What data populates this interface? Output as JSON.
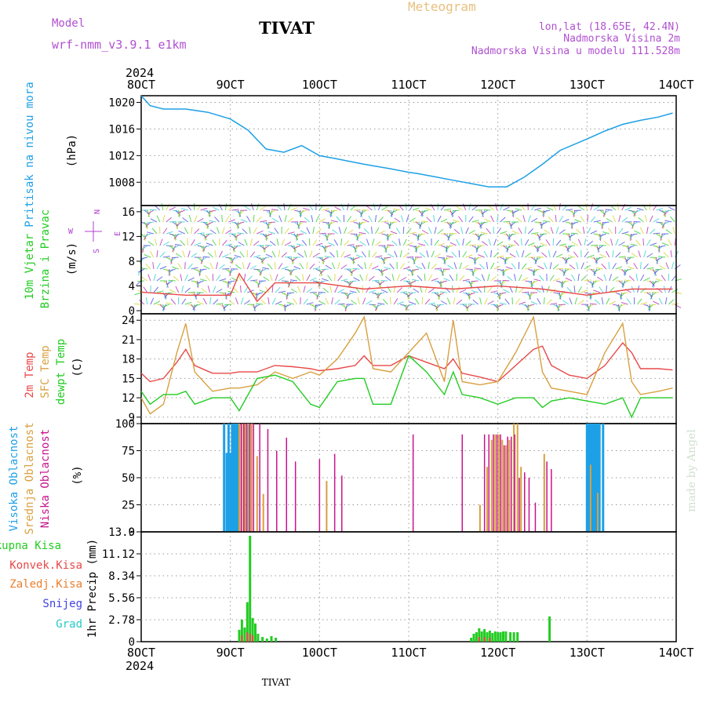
{
  "header": {
    "model_label": "Model",
    "model_name": "wrf-nmm_v3.9.1 e1km",
    "station": "TIVAT",
    "product": "Meteogram",
    "lonlat": "lon,lat (18.65E, 42.4N)",
    "elevation": "Nadmorska Visina 2m",
    "model_elevation": "Nadmorska Visina u modelu 111.528m",
    "year_top": "2024",
    "year_bottom": "2024",
    "footer_station": "TIVAT",
    "credit": "made by Angel"
  },
  "colors": {
    "pressure": "#1ea0e6",
    "wind_label": "#22cc22",
    "compass": "#b040d0",
    "temp2m": "#e84848",
    "sfc_temp": "#d8a040",
    "dewpt": "#22cc22",
    "high_cloud": "#1ea0e6",
    "mid_cloud": "#d8a040",
    "low_cloud": "#c8148c",
    "rain_total": "#22cc22",
    "rain_conv": "#e84848",
    "rain_frozen": "#e88030",
    "snow": "#4040e0",
    "hail": "#28c8c8"
  },
  "chart_data": [
    {
      "type": "line",
      "id": "pressure",
      "ylabel_main": "Pritisak na nivou mora",
      "ylabel_unit": "(hPa)",
      "x_dates": [
        "8OCT",
        "9OCT",
        "10OCT",
        "11OCT",
        "12OCT",
        "13OCT",
        "14OCT"
      ],
      "ylim": [
        1004.5,
        1021
      ],
      "yticks": [
        1008,
        1012,
        1016,
        1020
      ],
      "x": [
        0,
        0.1,
        0.25,
        0.5,
        0.75,
        1,
        1.2,
        1.4,
        1.6,
        1.8,
        2,
        2.2,
        2.5,
        2.8,
        3,
        3.1,
        3.3,
        3.5,
        3.7,
        3.9,
        4.1,
        4.3,
        4.5,
        4.7,
        5,
        5.2,
        5.4,
        5.6,
        5.8,
        5.96
      ],
      "series": [
        {
          "values": [
            1021,
            1019.5,
            1019,
            1019,
            1018.5,
            1017.5,
            1015.8,
            1013,
            1012.5,
            1013.5,
            1012,
            1011.5,
            1010.7,
            1010,
            1009.5,
            1009.3,
            1008.8,
            1008.3,
            1007.8,
            1007.3,
            1007.3,
            1008.8,
            1010.7,
            1012.8,
            1014.5,
            1015.7,
            1016.7,
            1017.3,
            1017.8,
            1018.4
          ]
        }
      ],
      "grid": true
    },
    {
      "type": "barbs",
      "id": "wind",
      "ylabel_main": "10m Vjetar",
      "ylabel_sub": "Brzina i Pravac",
      "ylabel_unit": "(m/s)",
      "compass": [
        "N",
        "E",
        "S",
        "W"
      ],
      "ylim": [
        -0.5,
        17
      ],
      "yticks": [
        0,
        4,
        8,
        12,
        16
      ],
      "x": [
        0,
        0.5,
        1,
        1.1,
        1.3,
        1.5,
        2,
        2.5,
        3,
        3.5,
        4,
        4.5,
        5,
        5.5,
        5.96
      ],
      "series": [
        {
          "values": [
            3,
            2.5,
            2.5,
            6,
            1.5,
            4.5,
            4.5,
            3.5,
            4,
            3.5,
            4,
            3.5,
            2.5,
            3.5,
            3.5
          ]
        }
      ]
    },
    {
      "type": "line",
      "id": "temperature",
      "ylabels": [
        "2m Temp",
        "SFC Temp",
        "dewpt Temp"
      ],
      "ylabel_unit": "(C)",
      "ylim": [
        8,
        25
      ],
      "yticks": [
        9,
        12,
        15,
        18,
        21,
        24
      ],
      "x": [
        0,
        0.1,
        0.25,
        0.4,
        0.5,
        0.6,
        0.8,
        1,
        1.1,
        1.3,
        1.5,
        1.7,
        1.9,
        2,
        2.2,
        2.4,
        2.5,
        2.6,
        2.8,
        3,
        3.2,
        3.4,
        3.5,
        3.6,
        3.8,
        4,
        4.2,
        4.4,
        4.5,
        4.6,
        4.8,
        5,
        5.2,
        5.4,
        5.5,
        5.6,
        5.8,
        5.96
      ],
      "series": [
        {
          "name": "2m Temp",
          "values": [
            15.8,
            14.5,
            15,
            17.5,
            19.5,
            17,
            15.8,
            15.8,
            16,
            16,
            17,
            16.8,
            16.5,
            16.2,
            16.5,
            17,
            18.5,
            17,
            17,
            18.5,
            17.5,
            16.5,
            18,
            15.8,
            15.2,
            14.5,
            17,
            19.5,
            20,
            17,
            15.5,
            15,
            17,
            20.5,
            19,
            16.5,
            16.5,
            16.3
          ]
        },
        {
          "name": "SFC Temp",
          "values": [
            12,
            9.5,
            11,
            19,
            23.5,
            16,
            13,
            13.5,
            13.5,
            14,
            16,
            15,
            16,
            15.5,
            18,
            22,
            24.5,
            16.5,
            16,
            19,
            22,
            14.5,
            24,
            14.5,
            14,
            14.5,
            19,
            24.5,
            16,
            13.5,
            13,
            12.5,
            19,
            23.5,
            14.5,
            12.5,
            13,
            13.5
          ]
        },
        {
          "name": "dewpt Temp",
          "values": [
            13,
            11,
            12.5,
            12.5,
            13,
            11,
            12,
            12,
            10,
            15,
            15.5,
            14.5,
            11,
            10.5,
            14.5,
            15,
            15,
            11,
            11,
            18.5,
            16,
            12.5,
            16,
            12.5,
            12,
            11,
            12,
            12,
            10.5,
            11.5,
            12,
            11.5,
            11,
            12,
            9,
            12,
            12,
            12
          ]
        }
      ],
      "grid": true
    },
    {
      "type": "bar",
      "id": "cloud",
      "ylabels": [
        "Visoka Oblacnost",
        "Srednja Oblacnost",
        "Niska Oblacnost"
      ],
      "ylabel_unit": "(%)",
      "ylim": [
        0,
        100
      ],
      "yticks": [
        0,
        25,
        50,
        75,
        100
      ],
      "series": [
        {
          "name": "Visoka Oblacnost",
          "x": [
            0.93,
            0.96,
            0.98,
            1.0,
            1.02,
            1.04,
            1.06,
            1.08,
            1.2,
            5.0,
            5.02,
            5.04,
            5.06,
            5.08,
            5.1,
            5.12,
            5.14,
            5.18
          ],
          "values": [
            100,
            73,
            100,
            73,
            100,
            100,
            100,
            100,
            100,
            100,
            100,
            100,
            100,
            100,
            100,
            100,
            100,
            100
          ]
        },
        {
          "name": "Srednja Oblacnost",
          "x": [
            1.1,
            1.13,
            1.16,
            1.2,
            1.24,
            1.3,
            1.37,
            2.08,
            3.8,
            3.88,
            3.93,
            3.97,
            4.01,
            4.05,
            4.09,
            4.13,
            4.18,
            4.22,
            4.26,
            4.52,
            5.04,
            5.12
          ],
          "values": [
            100,
            100,
            100,
            100,
            100,
            70,
            35,
            47,
            25,
            60,
            85,
            90,
            90,
            85,
            80,
            85,
            100,
            100,
            60,
            72,
            62,
            36
          ]
        },
        {
          "name": "Niska Oblacnost",
          "x": [
            1.12,
            1.15,
            1.18,
            1.22,
            1.26,
            1.33,
            1.42,
            1.52,
            1.63,
            1.73,
            2.0,
            2.17,
            2.25,
            3.05,
            3.6,
            3.85,
            3.9,
            3.95,
            3.99,
            4.03,
            4.07,
            4.11,
            4.15,
            4.19,
            4.24,
            4.3,
            4.35,
            4.42,
            4.55,
            4.6
          ],
          "values": [
            100,
            100,
            100,
            100,
            100,
            100,
            95,
            75,
            87,
            65,
            67,
            72,
            52,
            90,
            90,
            90,
            90,
            90,
            90,
            90,
            80,
            88,
            88,
            90,
            50,
            55,
            50,
            27,
            65,
            58
          ]
        }
      ],
      "grid": true
    },
    {
      "type": "bar",
      "id": "precip",
      "ylabels": [
        "Ukupna Kisa",
        "Konvek.Kisa",
        "Zaledj.Kisa",
        "Snijeg",
        "Grad"
      ],
      "ylabel_unit": "1hr Precip (mm)",
      "ylim": [
        0,
        13.9
      ],
      "yticks": [
        "0",
        "2.78",
        "5.56",
        "8.34",
        "11.12",
        "13.9"
      ],
      "series": [
        {
          "name": "Ukupna Kisa",
          "x": [
            1.1,
            1.13,
            1.16,
            1.19,
            1.22,
            1.25,
            1.28,
            1.31,
            1.36,
            1.41,
            1.46,
            1.51,
            3.7,
            3.73,
            3.76,
            3.79,
            3.82,
            3.85,
            3.88,
            3.91,
            3.94,
            3.97,
            4.0,
            4.03,
            4.06,
            4.09,
            4.14,
            4.18,
            4.22,
            4.58
          ],
          "values": [
            1.5,
            2.8,
            1.8,
            5,
            13.4,
            3,
            2.3,
            1,
            0.6,
            0.4,
            0.7,
            0.5,
            0.5,
            1,
            1.2,
            1.7,
            1.3,
            1.6,
            1.2,
            1.4,
            1.1,
            1.3,
            1.2,
            1.2,
            1.3,
            1.3,
            1.2,
            1.2,
            1.2,
            3.2
          ]
        },
        {
          "name": "Konvek.Kisa",
          "x": [
            1.13,
            1.19,
            1.22,
            1.25,
            3.79,
            3.85,
            3.91
          ],
          "values": [
            0.8,
            1.2,
            1.0,
            0.8,
            0.6,
            0.6,
            0.5
          ]
        }
      ],
      "grid": true
    }
  ]
}
